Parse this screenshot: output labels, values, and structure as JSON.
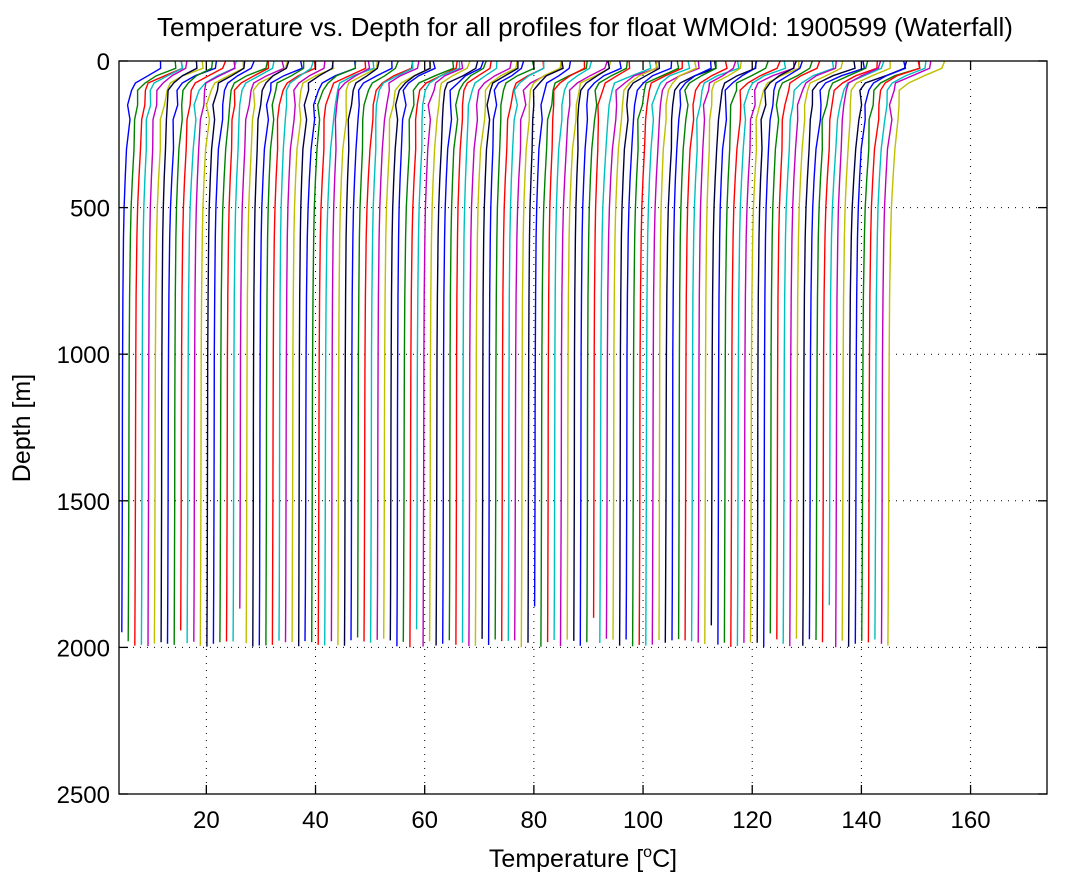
{
  "chart_data": {
    "type": "line",
    "title": "Temperature vs. Depth for all profiles for float WMOId: 1900599 (Waterfall)",
    "xlabel_prefix": "Temperature [",
    "xlabel_sup": "o",
    "xlabel_suffix": "C]",
    "ylabel": "Depth [m]",
    "xlim": [
      4,
      174
    ],
    "ylim": [
      0,
      2500
    ],
    "y_reversed": true,
    "grid": true,
    "x_ticks": [
      20,
      40,
      60,
      80,
      100,
      120,
      140,
      160
    ],
    "y_ticks": [
      0,
      500,
      1000,
      1500,
      2000,
      2500
    ],
    "x_tick_labels": [
      "20",
      "40",
      "60",
      "80",
      "100",
      "120",
      "140",
      "160"
    ],
    "y_tick_labels": [
      "0",
      "500",
      "1000",
      "1500",
      "2000",
      "2500"
    ],
    "colors": [
      "#0000ff",
      "#008000",
      "#ff0000",
      "#00bfbf",
      "#bf00bf",
      "#bfbf00",
      "#000040"
    ],
    "profile_count": 118,
    "profile_depths": [
      0,
      25,
      50,
      75,
      100,
      150,
      200,
      300,
      400,
      500,
      600,
      800,
      1000,
      1200,
      1500,
      1800,
      2000
    ],
    "profile_shape": [
      7.2,
      7.1,
      4.4,
      2.3,
      1.6,
      1.3,
      1.1,
      0.8,
      0.55,
      0.35,
      0.24,
      0.12,
      0.06,
      0.03,
      0.0,
      -0.05,
      -0.1
    ],
    "first_profile_deep_temperature": 4.6,
    "profile_spacing": 1.2,
    "max_depth_range": [
      1850,
      2000
    ]
  }
}
